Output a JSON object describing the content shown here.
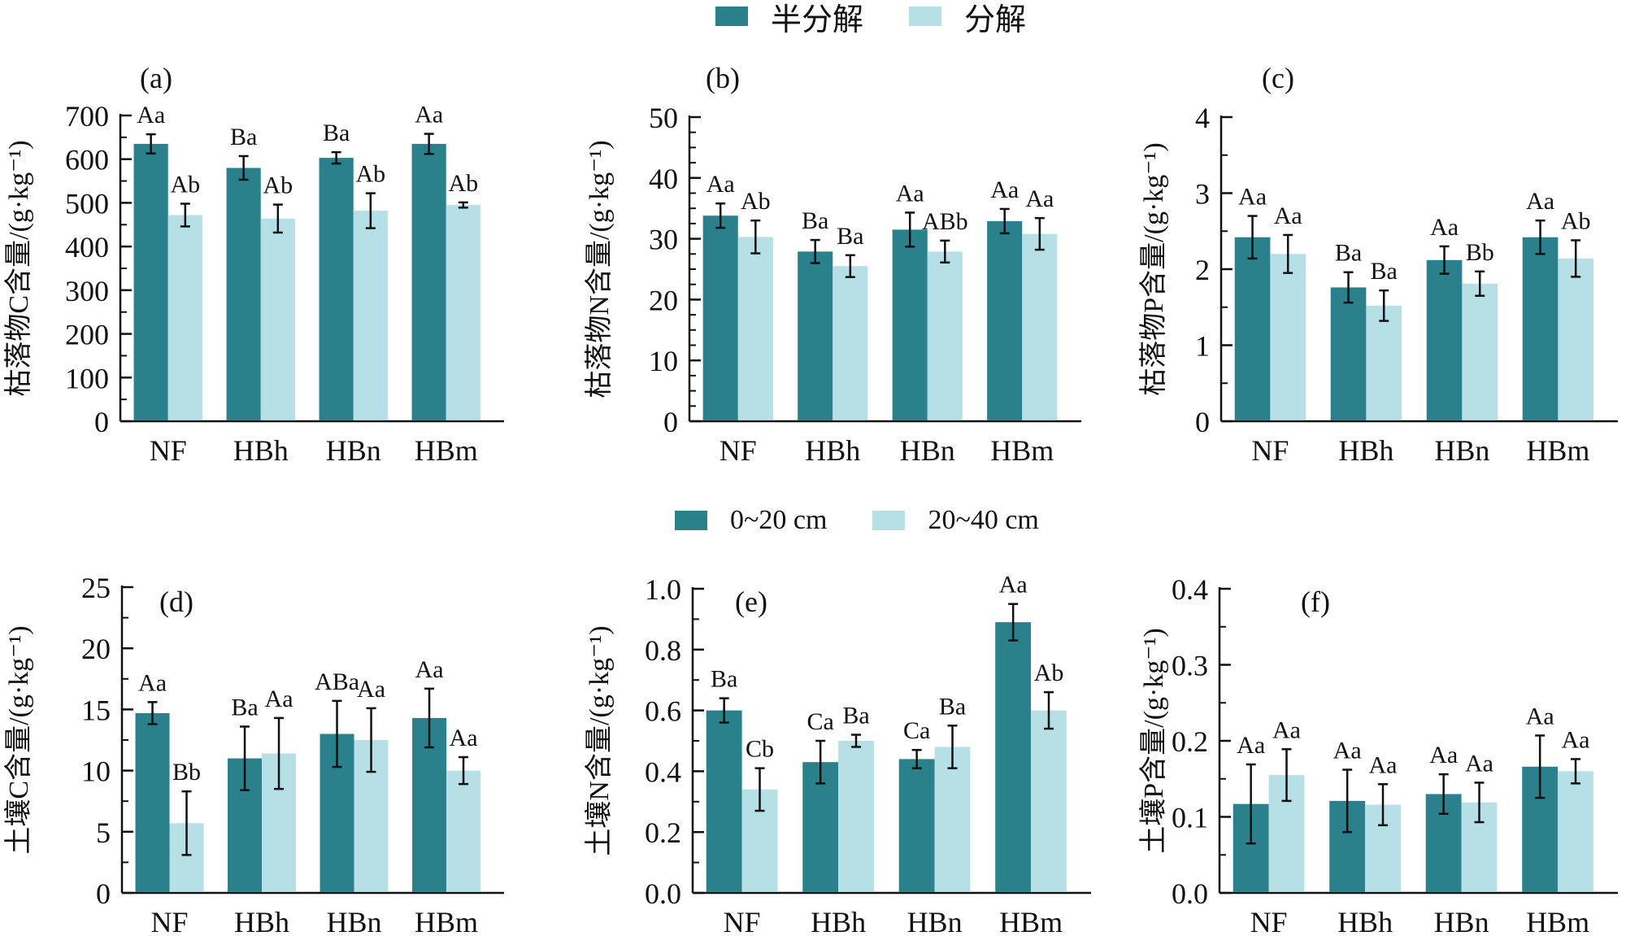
{
  "colors": {
    "dark": "#2a808b",
    "light": "#b6dfe6",
    "axis": "#111111",
    "errorbar": "#111111"
  },
  "legends": {
    "top": [
      {
        "label": "半分解",
        "color": "#2a808b"
      },
      {
        "label": "分解",
        "color": "#b6dfe6"
      }
    ],
    "bottom": [
      {
        "label": "0~20 cm",
        "color": "#2a808b"
      },
      {
        "label": "20~40 cm",
        "color": "#b6dfe6"
      }
    ]
  },
  "chart_data": [
    {
      "type": "bar",
      "panel": "(a)",
      "title": "",
      "xlabel": "",
      "ylabel": "枯落物C含量/(g·kg⁻¹)",
      "ylim": [
        0,
        700
      ],
      "yticks": [
        0,
        100,
        200,
        300,
        400,
        500,
        600,
        700
      ],
      "yminor": 50,
      "ytick_labels": [
        "0",
        "100",
        "200",
        "300",
        "400",
        "500",
        "600",
        "700"
      ],
      "categories": [
        "NF",
        "HBh",
        "HBn",
        "HBm"
      ],
      "series": [
        {
          "name": "半分解",
          "values": [
            635,
            580,
            603,
            635
          ],
          "errors": [
            22,
            27,
            13,
            23
          ],
          "labels": [
            "Aa",
            "Ba",
            "Ba",
            "Aa"
          ]
        },
        {
          "name": "分解",
          "values": [
            472,
            464,
            482,
            495
          ],
          "errors": [
            26,
            32,
            40,
            6
          ],
          "labels": [
            "Ab",
            "Ab",
            "Ab",
            "Ab"
          ]
        }
      ],
      "legend": "top-center",
      "grid": false
    },
    {
      "type": "bar",
      "panel": "(b)",
      "title": "",
      "xlabel": "",
      "ylabel": "枯落物N含量/(g·kg⁻¹)",
      "ylim": [
        0,
        50
      ],
      "yticks": [
        0,
        10,
        20,
        30,
        40,
        50
      ],
      "yminor": 2.5,
      "ytick_labels": [
        "0",
        "10",
        "20",
        "30",
        "40",
        "50"
      ],
      "categories": [
        "NF",
        "HBh",
        "HBn",
        "HBm"
      ],
      "series": [
        {
          "name": "半分解",
          "values": [
            33.8,
            27.9,
            31.5,
            32.9
          ],
          "errors": [
            2.0,
            1.9,
            2.8,
            2.0
          ],
          "labels": [
            "Aa",
            "Ba",
            "Aa",
            "Aa"
          ]
        },
        {
          "name": "分解",
          "values": [
            30.3,
            25.5,
            27.9,
            30.8
          ],
          "errors": [
            2.7,
            1.8,
            1.8,
            2.6
          ],
          "labels": [
            "Ab",
            "Ba",
            "ABb",
            "Aa"
          ]
        }
      ],
      "legend": "top-center",
      "grid": false
    },
    {
      "type": "bar",
      "panel": "(c)",
      "title": "",
      "xlabel": "",
      "ylabel": "枯落物P含量/(g·kg⁻¹)",
      "ylim": [
        0,
        4
      ],
      "yticks": [
        0,
        1,
        2,
        3,
        4
      ],
      "yminor": 0.5,
      "ytick_labels": [
        "0",
        "1",
        "2",
        "3",
        "4"
      ],
      "categories": [
        "NF",
        "HBh",
        "HBn",
        "HBm"
      ],
      "series": [
        {
          "name": "半分解",
          "values": [
            2.42,
            1.76,
            2.12,
            2.42
          ],
          "errors": [
            0.28,
            0.2,
            0.18,
            0.22
          ],
          "labels": [
            "Aa",
            "Ba",
            "Aa",
            "Aa"
          ]
        },
        {
          "name": "分解",
          "values": [
            2.2,
            1.52,
            1.81,
            2.14
          ],
          "errors": [
            0.25,
            0.2,
            0.16,
            0.24
          ],
          "labels": [
            "Aa",
            "Ba",
            "Bb",
            "Ab"
          ]
        }
      ],
      "legend": "top-center",
      "grid": false
    },
    {
      "type": "bar",
      "panel": "(d)",
      "title": "",
      "xlabel": "",
      "ylabel": "土壤C含量/(g·kg⁻¹)",
      "ylim": [
        0,
        25
      ],
      "yticks": [
        0,
        5,
        10,
        15,
        20,
        25
      ],
      "yminor": 2.5,
      "ytick_labels": [
        "0",
        "5",
        "10",
        "15",
        "20",
        "25"
      ],
      "categories": [
        "NF",
        "HBh",
        "HBn",
        "HBm"
      ],
      "series": [
        {
          "name": "0~20 cm",
          "values": [
            14.7,
            11.0,
            13.0,
            14.3
          ],
          "errors": [
            0.9,
            2.6,
            2.7,
            2.4
          ],
          "labels": [
            "Aa",
            "Ba",
            "ABa",
            "Aa"
          ]
        },
        {
          "name": "20~40 cm",
          "values": [
            5.7,
            11.4,
            12.5,
            10.0
          ],
          "errors": [
            2.6,
            2.9,
            2.6,
            1.1
          ],
          "labels": [
            "Bb",
            "Aa",
            "Aa",
            "Aa"
          ]
        }
      ],
      "legend": "top-center",
      "grid": false
    },
    {
      "type": "bar",
      "panel": "(e)",
      "title": "",
      "xlabel": "",
      "ylabel": "土壤N含量/(g·kg⁻¹)",
      "ylim": [
        0,
        1.0
      ],
      "yticks": [
        0,
        0.2,
        0.4,
        0.6,
        0.8,
        1.0
      ],
      "yminor": 0.1,
      "ytick_labels": [
        "0.0",
        "0.2",
        "0.4",
        "0.6",
        "0.8",
        "1.0"
      ],
      "categories": [
        "NF",
        "HBh",
        "HBn",
        "HBm"
      ],
      "series": [
        {
          "name": "0~20 cm",
          "values": [
            0.6,
            0.43,
            0.44,
            0.89
          ],
          "errors": [
            0.04,
            0.07,
            0.03,
            0.06
          ],
          "labels": [
            "Ba",
            "Ca",
            "Ca",
            "Aa"
          ]
        },
        {
          "name": "20~40 cm",
          "values": [
            0.34,
            0.5,
            0.48,
            0.6
          ],
          "errors": [
            0.07,
            0.02,
            0.07,
            0.06
          ],
          "labels": [
            "Cb",
            "Ba",
            "Ba",
            "Ab"
          ]
        }
      ],
      "legend": "top-center",
      "grid": false
    },
    {
      "type": "bar",
      "panel": "(f)",
      "title": "",
      "xlabel": "",
      "ylabel": "土壤P含量/(g·kg⁻¹)",
      "ylim": [
        0,
        0.4
      ],
      "yticks": [
        0,
        0.1,
        0.2,
        0.3,
        0.4
      ],
      "yminor": 0.05,
      "ytick_labels": [
        "0.0",
        "0.1",
        "0.2",
        "0.3",
        "0.4"
      ],
      "categories": [
        "NF",
        "HBh",
        "HBn",
        "HBm"
      ],
      "series": [
        {
          "name": "0~20 cm",
          "values": [
            0.117,
            0.121,
            0.13,
            0.166
          ],
          "errors": [
            0.052,
            0.041,
            0.026,
            0.041
          ],
          "labels": [
            "Aa",
            "Aa",
            "Aa",
            "Aa"
          ]
        },
        {
          "name": "20~40 cm",
          "values": [
            0.155,
            0.116,
            0.119,
            0.16
          ],
          "errors": [
            0.034,
            0.027,
            0.026,
            0.016
          ],
          "labels": [
            "Aa",
            "Aa",
            "Aa",
            "Aa"
          ]
        }
      ],
      "legend": "top-center",
      "grid": false
    }
  ]
}
